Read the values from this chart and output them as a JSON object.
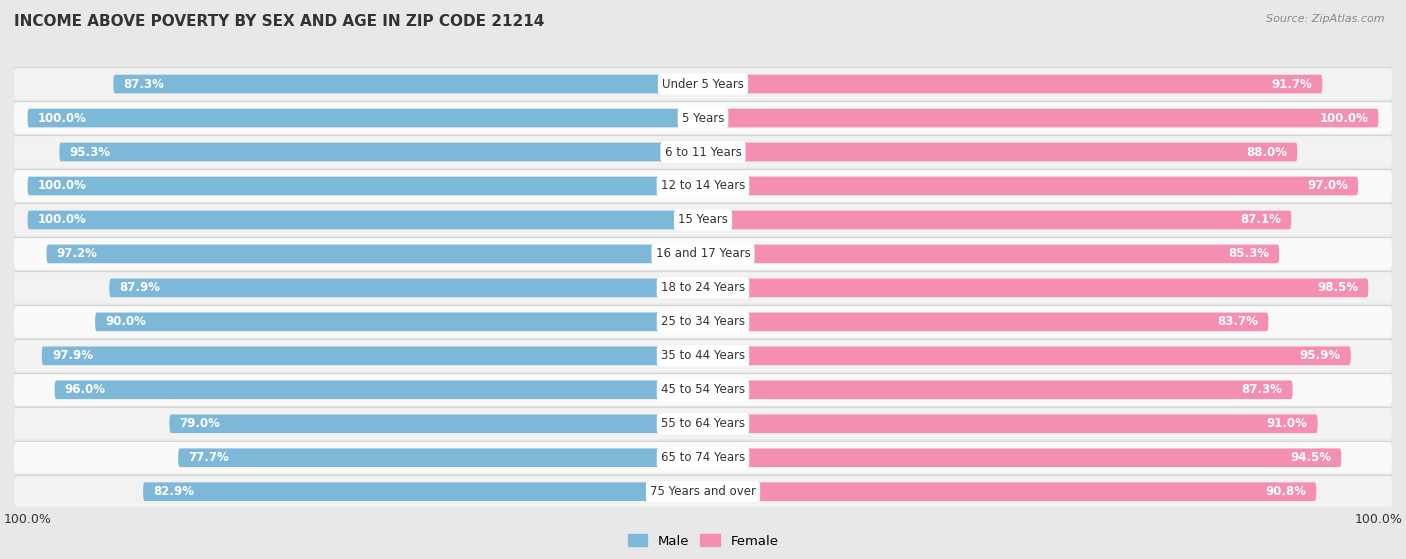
{
  "title": "INCOME ABOVE POVERTY BY SEX AND AGE IN ZIP CODE 21214",
  "source": "Source: ZipAtlas.com",
  "categories": [
    "Under 5 Years",
    "5 Years",
    "6 to 11 Years",
    "12 to 14 Years",
    "15 Years",
    "16 and 17 Years",
    "18 to 24 Years",
    "25 to 34 Years",
    "35 to 44 Years",
    "45 to 54 Years",
    "55 to 64 Years",
    "65 to 74 Years",
    "75 Years and over"
  ],
  "male": [
    87.3,
    100.0,
    95.3,
    100.0,
    100.0,
    97.2,
    87.9,
    90.0,
    97.9,
    96.0,
    79.0,
    77.7,
    82.9
  ],
  "female": [
    91.7,
    100.0,
    88.0,
    97.0,
    87.1,
    85.3,
    98.5,
    83.7,
    95.9,
    87.3,
    91.0,
    94.5,
    90.8
  ],
  "male_color": "#7eb8d9",
  "female_color": "#f48fb1",
  "male_color_light": "#b8d9ee",
  "female_color_light": "#f9c4d8",
  "male_label": "Male",
  "female_label": "Female",
  "bg_color": "#e8e8e8",
  "row_bg": "#f0f0f0",
  "bar_height": 0.55,
  "label_fontsize": 8.5,
  "category_fontsize": 8.5,
  "title_fontsize": 11,
  "source_fontsize": 8
}
